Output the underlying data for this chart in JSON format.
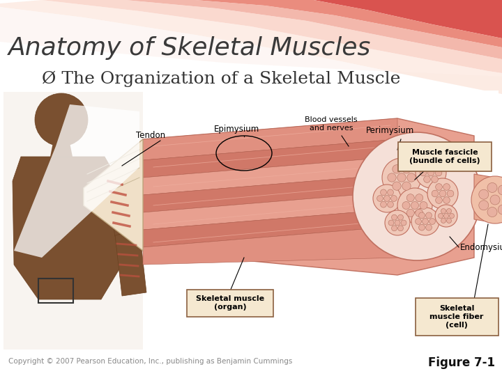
{
  "title": "Anatomy of Skeletal Muscles",
  "subtitle": "The Organization of a Skeletal Muscle",
  "subtitle_bullet": "Ø",
  "figure_label": "Figure 7-1",
  "copyright": "Copyright © 2007 Pearson Education, Inc., publishing as Benjamin Cummings",
  "bg_color": "#ffffff",
  "title_color": "#3a3a3a",
  "subtitle_color": "#333333",
  "figure_label_color": "#111111",
  "copyright_color": "#888888",
  "title_fontsize": 26,
  "subtitle_fontsize": 18,
  "figure_label_fontsize": 12,
  "copyright_fontsize": 7.5,
  "swoosh_colors": [
    "#d9534f",
    "#e88878",
    "#f0a898",
    "#f8c8b8",
    "#fcddd4"
  ],
  "label_box_color": "#f5e8d0",
  "label_box_edge": "#8b6040"
}
